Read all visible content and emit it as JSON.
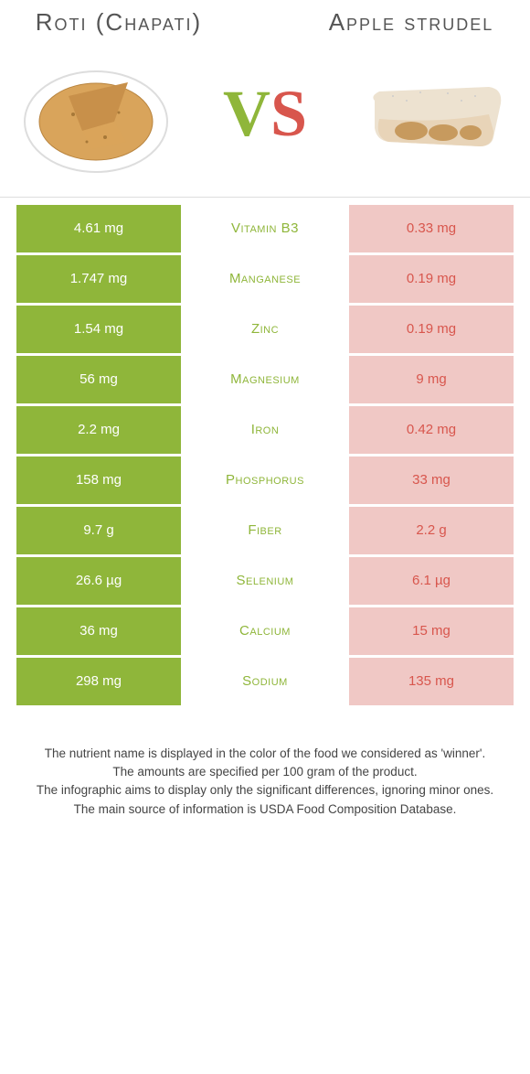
{
  "colors": {
    "left_bg": "#8fb63a",
    "right_bg": "#d8564d",
    "left_muted": "#d6e3b5",
    "right_muted": "#f0c8c5",
    "mid_left_text": "#8fb63a",
    "mid_right_text": "#d8564d"
  },
  "header": {
    "left_title": "Roti (Chapati)",
    "right_title": "Apple strudel"
  },
  "vs": {
    "v": "V",
    "s": "S"
  },
  "rows": [
    {
      "nutrient": "Vitamin B3",
      "left": "4.61 mg",
      "right": "0.33 mg",
      "winner": "left"
    },
    {
      "nutrient": "Manganese",
      "left": "1.747 mg",
      "right": "0.19 mg",
      "winner": "left"
    },
    {
      "nutrient": "Zinc",
      "left": "1.54 mg",
      "right": "0.19 mg",
      "winner": "left"
    },
    {
      "nutrient": "Magnesium",
      "left": "56 mg",
      "right": "9 mg",
      "winner": "left"
    },
    {
      "nutrient": "Iron",
      "left": "2.2 mg",
      "right": "0.42 mg",
      "winner": "left"
    },
    {
      "nutrient": "Phosphorus",
      "left": "158 mg",
      "right": "33 mg",
      "winner": "left"
    },
    {
      "nutrient": "Fiber",
      "left": "9.7 g",
      "right": "2.2 g",
      "winner": "left"
    },
    {
      "nutrient": "Selenium",
      "left": "26.6 µg",
      "right": "6.1 µg",
      "winner": "left"
    },
    {
      "nutrient": "Calcium",
      "left": "36 mg",
      "right": "15 mg",
      "winner": "left"
    },
    {
      "nutrient": "Sodium",
      "left": "298 mg",
      "right": "135 mg",
      "winner": "left"
    }
  ],
  "footer": {
    "line1": "The nutrient name is displayed in the color of the food we considered as 'winner'.",
    "line2": "The amounts are specified per 100 gram of the product.",
    "line3": "The infographic aims to display only the significant differences, ignoring minor ones.",
    "line4": "The main source of information is USDA Food Composition Database."
  }
}
